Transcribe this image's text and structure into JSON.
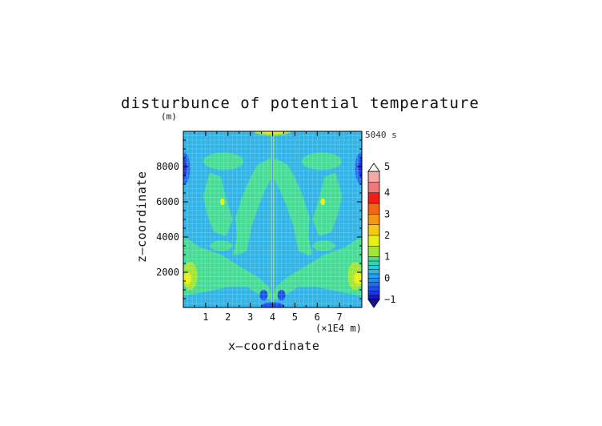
{
  "chart_data": {
    "type": "heatmap",
    "title": "disturbunce of potential temperature",
    "unit_label": "(m)",
    "time_label": "5040 s",
    "xlabel": "x—coordinate",
    "ylabel": "z—coordinate",
    "x_scale_label": "(×1E4 m)",
    "xlim": [
      0,
      8
    ],
    "ylim": [
      0,
      10000
    ],
    "x_ticks": [
      {
        "value": 1,
        "label": "1"
      },
      {
        "value": 2,
        "label": "2"
      },
      {
        "value": 3,
        "label": "3"
      },
      {
        "value": 4,
        "label": "4"
      },
      {
        "value": 5,
        "label": "5"
      },
      {
        "value": 6,
        "label": "6"
      },
      {
        "value": 7,
        "label": "7"
      }
    ],
    "y_ticks": [
      {
        "value": 2000,
        "label": "2000"
      },
      {
        "value": 4000,
        "label": "4000"
      },
      {
        "value": 6000,
        "label": "6000"
      },
      {
        "value": 8000,
        "label": "8000"
      }
    ],
    "colorbar": {
      "min": -1,
      "max": 5,
      "tick_labels": [
        {
          "value": -1,
          "label": "−1"
        },
        {
          "value": 0,
          "label": "0"
        },
        {
          "value": 1,
          "label": "1"
        },
        {
          "value": 2,
          "label": "2"
        },
        {
          "value": 3,
          "label": "3"
        },
        {
          "value": 4,
          "label": "4"
        },
        {
          "value": 5,
          "label": "5"
        }
      ],
      "levels": [
        {
          "from": -1.0,
          "to": -0.8,
          "color": "#1414d2"
        },
        {
          "from": -0.8,
          "to": -0.6,
          "color": "#1e32e6"
        },
        {
          "from": -0.6,
          "to": -0.4,
          "color": "#1e50f0"
        },
        {
          "from": -0.4,
          "to": -0.2,
          "color": "#1e6ef5"
        },
        {
          "from": -0.2,
          "to": 0.0,
          "color": "#1e8cf5"
        },
        {
          "from": 0.0,
          "to": 0.2,
          "color": "#28a0f0"
        },
        {
          "from": 0.2,
          "to": 0.4,
          "color": "#32b4e6"
        },
        {
          "from": 0.4,
          "to": 0.6,
          "color": "#2dc8d2"
        },
        {
          "from": 0.6,
          "to": 0.8,
          "color": "#32d2b4"
        },
        {
          "from": 0.8,
          "to": 1.0,
          "color": "#46dc96"
        },
        {
          "from": 1.0,
          "to": 1.5,
          "color": "#a0e632"
        },
        {
          "from": 1.5,
          "to": 2.0,
          "color": "#e6f014"
        },
        {
          "from": 2.0,
          "to": 2.5,
          "color": "#f5c814"
        },
        {
          "from": 2.5,
          "to": 3.0,
          "color": "#f5960f"
        },
        {
          "from": 3.0,
          "to": 3.5,
          "color": "#f5640f"
        },
        {
          "from": 3.5,
          "to": 4.0,
          "color": "#f01e14"
        },
        {
          "from": 4.0,
          "to": 4.5,
          "color": "#f07878"
        },
        {
          "from": 4.5,
          "to": 5.0,
          "color": "#f5aaaa"
        }
      ],
      "under_color": "#1414a0",
      "over_color": "#ffffff"
    },
    "background_value": 0.3,
    "features": [
      {
        "shape": "poly",
        "value": 0.9,
        "points": [
          [
            3.05,
            7.2
          ],
          [
            2.75,
            6.3
          ],
          [
            2.45,
            5.1
          ],
          [
            2.5,
            4.0
          ],
          [
            2.35,
            3.1
          ],
          [
            2.75,
            3.3
          ],
          [
            2.95,
            4.6
          ],
          [
            3.3,
            5.9
          ],
          [
            3.6,
            6.8
          ],
          [
            3.85,
            7.4
          ],
          [
            3.85,
            8.3
          ],
          [
            3.4,
            8.0
          ]
        ]
      },
      {
        "shape": "poly",
        "value": 0.9,
        "points": [
          [
            4.95,
            7.2
          ],
          [
            5.25,
            6.3
          ],
          [
            5.55,
            5.1
          ],
          [
            5.5,
            4.0
          ],
          [
            5.65,
            3.1
          ],
          [
            5.25,
            3.3
          ],
          [
            5.05,
            4.6
          ],
          [
            4.7,
            5.9
          ],
          [
            4.4,
            6.8
          ],
          [
            4.15,
            7.4
          ],
          [
            4.15,
            8.3
          ],
          [
            4.6,
            8.0
          ]
        ]
      },
      {
        "shape": "poly",
        "value": 0.9,
        "points": [
          [
            1.25,
            7.5
          ],
          [
            1.0,
            6.3
          ],
          [
            1.2,
            5.2
          ],
          [
            1.45,
            4.4
          ],
          [
            1.85,
            4.2
          ],
          [
            2.1,
            5.0
          ],
          [
            1.8,
            6.2
          ],
          [
            1.6,
            7.3
          ]
        ]
      },
      {
        "shape": "poly",
        "value": 0.9,
        "points": [
          [
            6.75,
            7.5
          ],
          [
            7.0,
            6.3
          ],
          [
            6.8,
            5.2
          ],
          [
            6.55,
            4.4
          ],
          [
            6.15,
            4.2
          ],
          [
            5.9,
            5.0
          ],
          [
            6.2,
            6.2
          ],
          [
            6.4,
            7.3
          ]
        ]
      },
      {
        "shape": "poly",
        "value": 0.9,
        "points": [
          [
            0.0,
            3.9
          ],
          [
            0.7,
            3.3
          ],
          [
            1.6,
            2.9
          ],
          [
            2.5,
            2.2
          ],
          [
            3.3,
            1.6
          ],
          [
            3.75,
            1.1
          ],
          [
            3.85,
            0.6
          ],
          [
            3.5,
            0.8
          ],
          [
            2.9,
            1.3
          ],
          [
            2.0,
            1.3
          ],
          [
            0.9,
            1.0
          ],
          [
            0.0,
            0.8
          ]
        ]
      },
      {
        "shape": "poly",
        "value": 0.9,
        "points": [
          [
            8.0,
            3.9
          ],
          [
            7.3,
            3.3
          ],
          [
            6.4,
            2.9
          ],
          [
            5.5,
            2.2
          ],
          [
            4.7,
            1.6
          ],
          [
            4.25,
            1.1
          ],
          [
            4.15,
            0.6
          ],
          [
            4.5,
            0.8
          ],
          [
            5.1,
            1.3
          ],
          [
            6.0,
            1.3
          ],
          [
            7.1,
            1.0
          ],
          [
            8.0,
            0.8
          ]
        ]
      },
      {
        "shape": "ellipse",
        "value": 1.3,
        "cx": 0.3,
        "cy": 1.8,
        "rx": 0.33,
        "ry": 0.8
      },
      {
        "shape": "ellipse",
        "value": 1.6,
        "cx": 0.18,
        "cy": 1.65,
        "rx": 0.18,
        "ry": 0.35
      },
      {
        "shape": "ellipse",
        "value": 1.3,
        "cx": 7.7,
        "cy": 1.8,
        "rx": 0.33,
        "ry": 0.8
      },
      {
        "shape": "ellipse",
        "value": 1.6,
        "cx": 7.82,
        "cy": 1.65,
        "rx": 0.18,
        "ry": 0.35
      },
      {
        "shape": "ellipse",
        "value": 0.9,
        "cx": 1.8,
        "cy": 8.3,
        "rx": 0.9,
        "ry": 0.5
      },
      {
        "shape": "ellipse",
        "value": 0.9,
        "cx": 6.2,
        "cy": 8.3,
        "rx": 0.9,
        "ry": 0.5
      },
      {
        "shape": "ellipse",
        "value": 0.9,
        "cx": 1.7,
        "cy": 3.5,
        "rx": 0.5,
        "ry": 0.3
      },
      {
        "shape": "ellipse",
        "value": 0.9,
        "cx": 6.3,
        "cy": 3.5,
        "rx": 0.5,
        "ry": 0.3
      },
      {
        "shape": "ellipse",
        "value": 1.6,
        "cx": 1.75,
        "cy": 6.0,
        "rx": 0.1,
        "ry": 0.2
      },
      {
        "shape": "ellipse",
        "value": 1.6,
        "cx": 6.25,
        "cy": 6.0,
        "rx": 0.1,
        "ry": 0.2
      },
      {
        "shape": "ellipse",
        "value": -0.3,
        "cx": 0.05,
        "cy": 7.9,
        "rx": 0.25,
        "ry": 0.9
      },
      {
        "shape": "ellipse",
        "value": -0.7,
        "cx": 0.0,
        "cy": 7.9,
        "rx": 0.14,
        "ry": 0.6
      },
      {
        "shape": "ellipse",
        "value": -0.3,
        "cx": 7.95,
        "cy": 7.9,
        "rx": 0.25,
        "ry": 0.9
      },
      {
        "shape": "ellipse",
        "value": -0.7,
        "cx": 8.0,
        "cy": 7.9,
        "rx": 0.14,
        "ry": 0.6
      },
      {
        "shape": "ellipse",
        "value": -0.5,
        "cx": 3.6,
        "cy": 0.7,
        "rx": 0.18,
        "ry": 0.3
      },
      {
        "shape": "ellipse",
        "value": -0.5,
        "cx": 4.4,
        "cy": 0.7,
        "rx": 0.18,
        "ry": 0.3
      },
      {
        "shape": "ellipse",
        "value": -0.6,
        "cx": 4.0,
        "cy": 0.1,
        "rx": 0.5,
        "ry": 0.2
      },
      {
        "shape": "ellipse",
        "value": 1.4,
        "cx": 4.0,
        "cy": 9.95,
        "rx": 0.8,
        "ry": 0.18
      },
      {
        "shape": "ellipse",
        "value": 1.8,
        "cx": 4.0,
        "cy": 9.97,
        "rx": 0.55,
        "ry": 0.1
      },
      {
        "shape": "rect",
        "value": 1.3,
        "x0": 3.93,
        "x1": 4.07,
        "y0": 0.3,
        "y1": 9.95
      },
      {
        "shape": "rect",
        "value": -0.2,
        "x0": 3.98,
        "x1": 4.02,
        "y0": 0.3,
        "y1": 9.95
      }
    ]
  }
}
